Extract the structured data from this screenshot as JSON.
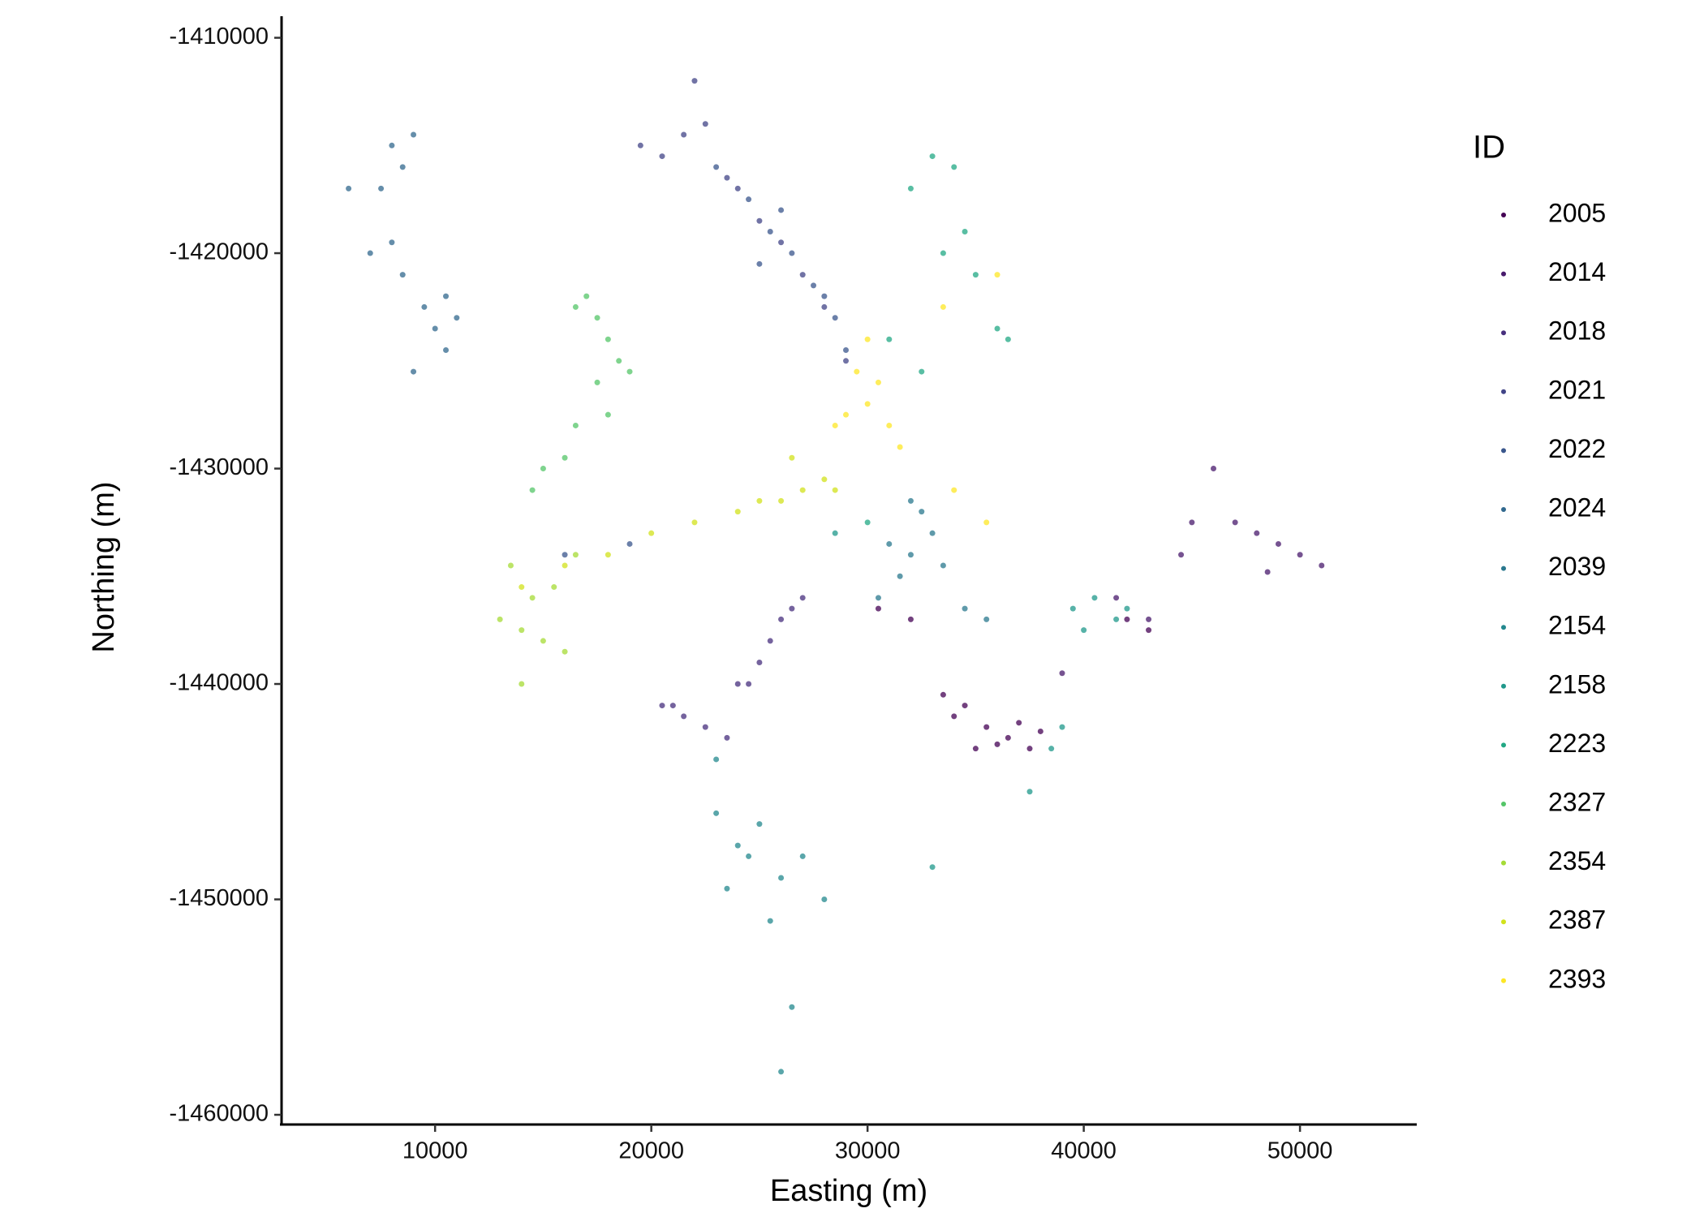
{
  "chart_data": {
    "type": "scatter",
    "x_label": "Easting (m)",
    "y_label": "Northing (m)",
    "legend_title": "ID",
    "legend": "right",
    "grid": false,
    "xlim": [
      2900,
      55400
    ],
    "xticks": [
      10000,
      20000,
      30000,
      40000,
      50000
    ],
    "ylim": [
      -1460150,
      -1409000
    ],
    "yticks": [
      -1410000,
      -1420000,
      -1430000,
      -1440000,
      -1450000,
      -1460000
    ],
    "series": [
      {
        "name": "2005",
        "color": "#440154",
        "x": [
          34000,
          35500,
          36500,
          37000,
          38000,
          33500,
          35000,
          36000,
          34500,
          37500,
          32000,
          30500,
          42000,
          43000
        ],
        "y": [
          -1441500,
          -1442000,
          -1442500,
          -1441800,
          -1442200,
          -1440500,
          -1443000,
          -1442800,
          -1441000,
          -1443000,
          -1437000,
          -1436500,
          -1437000,
          -1437500
        ]
      },
      {
        "name": "2014",
        "color": "#481A6C",
        "x": [
          47000,
          48000,
          49000,
          50000,
          51000,
          48500,
          46000,
          45000,
          44500,
          43000,
          41500,
          39000
        ],
        "y": [
          -1432500,
          -1433000,
          -1433500,
          -1434000,
          -1434500,
          -1434800,
          -1430000,
          -1432500,
          -1434000,
          -1437000,
          -1436000,
          -1439500
        ]
      },
      {
        "name": "2018",
        "color": "#472F7D",
        "x": [
          26000,
          26500,
          27000,
          25500,
          25000,
          24500,
          21000,
          21500,
          22500,
          20500,
          23500,
          24000
        ],
        "y": [
          -1437000,
          -1436500,
          -1436000,
          -1438000,
          -1439000,
          -1440000,
          -1441000,
          -1441500,
          -1442000,
          -1441000,
          -1442500,
          -1440000
        ]
      },
      {
        "name": "2021",
        "color": "#414487",
        "x": [
          19500,
          20500,
          21500,
          22500,
          23500,
          24000,
          25000,
          26000,
          27000,
          28000,
          22000,
          29000
        ],
        "y": [
          -1415000,
          -1415500,
          -1414500,
          -1414000,
          -1416500,
          -1417000,
          -1418500,
          -1419500,
          -1421000,
          -1422500,
          -1412000,
          -1425000
        ]
      },
      {
        "name": "2022",
        "color": "#39568C",
        "x": [
          24500,
          25500,
          26500,
          27500,
          28500,
          23000,
          26000,
          29000,
          28000,
          25000,
          16000,
          19000
        ],
        "y": [
          -1417500,
          -1419000,
          -1420000,
          -1421500,
          -1423000,
          -1416000,
          -1418000,
          -1424500,
          -1422000,
          -1420500,
          -1434000,
          -1433500
        ]
      },
      {
        "name": "2024",
        "color": "#31688E",
        "x": [
          8000,
          8500,
          9000,
          7500,
          8000,
          8500,
          9500,
          10000,
          10500,
          11000,
          9000,
          7000,
          6000,
          10500
        ],
        "y": [
          -1415000,
          -1416000,
          -1414500,
          -1417000,
          -1419500,
          -1421000,
          -1422500,
          -1423500,
          -1424500,
          -1423000,
          -1425500,
          -1420000,
          -1417000,
          -1422000
        ]
      },
      {
        "name": "2039",
        "color": "#2A788E",
        "x": [
          31000,
          32000,
          33000,
          32500,
          31500,
          30500,
          33500,
          34500,
          35500,
          32000
        ],
        "y": [
          -1433500,
          -1434000,
          -1433000,
          -1432000,
          -1435000,
          -1436000,
          -1434500,
          -1436500,
          -1437000,
          -1431500
        ]
      },
      {
        "name": "2154",
        "color": "#23888E",
        "x": [
          23000,
          24000,
          24500,
          25000,
          26000,
          27000,
          25500,
          26500,
          23500,
          28000,
          26000,
          23000
        ],
        "y": [
          -1446000,
          -1447500,
          -1448000,
          -1446500,
          -1449000,
          -1448000,
          -1451000,
          -1455000,
          -1449500,
          -1450000,
          -1458000,
          -1443500
        ]
      },
      {
        "name": "2158",
        "color": "#1F988B",
        "x": [
          39500,
          40500,
          41500,
          42000,
          40000,
          38500,
          39000,
          37500,
          33000,
          28500
        ],
        "y": [
          -1436500,
          -1436000,
          -1437000,
          -1436500,
          -1437500,
          -1443000,
          -1442000,
          -1445000,
          -1448500,
          -1433000
        ]
      },
      {
        "name": "2223",
        "color": "#22A884",
        "x": [
          32000,
          33000,
          34000,
          33500,
          35000,
          36000,
          32500,
          31000,
          30000,
          34500,
          36500
        ],
        "y": [
          -1417000,
          -1415500,
          -1416000,
          -1420000,
          -1421000,
          -1423500,
          -1425500,
          -1424000,
          -1432500,
          -1419000,
          -1424000
        ]
      },
      {
        "name": "2327",
        "color": "#54C568",
        "x": [
          17000,
          17500,
          18000,
          18500,
          19000,
          16500,
          17500,
          15000,
          14500,
          16000,
          16500,
          18000
        ],
        "y": [
          -1422000,
          -1423000,
          -1424000,
          -1425000,
          -1425500,
          -1422500,
          -1426000,
          -1430000,
          -1431000,
          -1429500,
          -1428000,
          -1427500
        ]
      },
      {
        "name": "2354",
        "color": "#A5DB36",
        "x": [
          14000,
          15000,
          16000,
          15500,
          13500,
          14500,
          13000,
          16500,
          14000
        ],
        "y": [
          -1437500,
          -1438000,
          -1438500,
          -1435500,
          -1434500,
          -1436000,
          -1437000,
          -1434000,
          -1440000
        ]
      },
      {
        "name": "2387",
        "color": "#D2E21B",
        "x": [
          27000,
          28000,
          26000,
          25000,
          24000,
          22000,
          20000,
          18000,
          16000,
          14000,
          28500,
          26500
        ],
        "y": [
          -1431000,
          -1430500,
          -1431500,
          -1431500,
          -1432000,
          -1432500,
          -1433000,
          -1434000,
          -1434500,
          -1435500,
          -1431000,
          -1429500
        ]
      },
      {
        "name": "2393",
        "color": "#FDE725",
        "x": [
          29500,
          30000,
          30500,
          31000,
          29000,
          28500,
          31500,
          30000,
          34000,
          35500,
          33500,
          36000
        ],
        "y": [
          -1425500,
          -1427000,
          -1426000,
          -1428000,
          -1427500,
          -1428000,
          -1429000,
          -1424000,
          -1431000,
          -1432500,
          -1422500,
          -1421000
        ]
      }
    ]
  }
}
